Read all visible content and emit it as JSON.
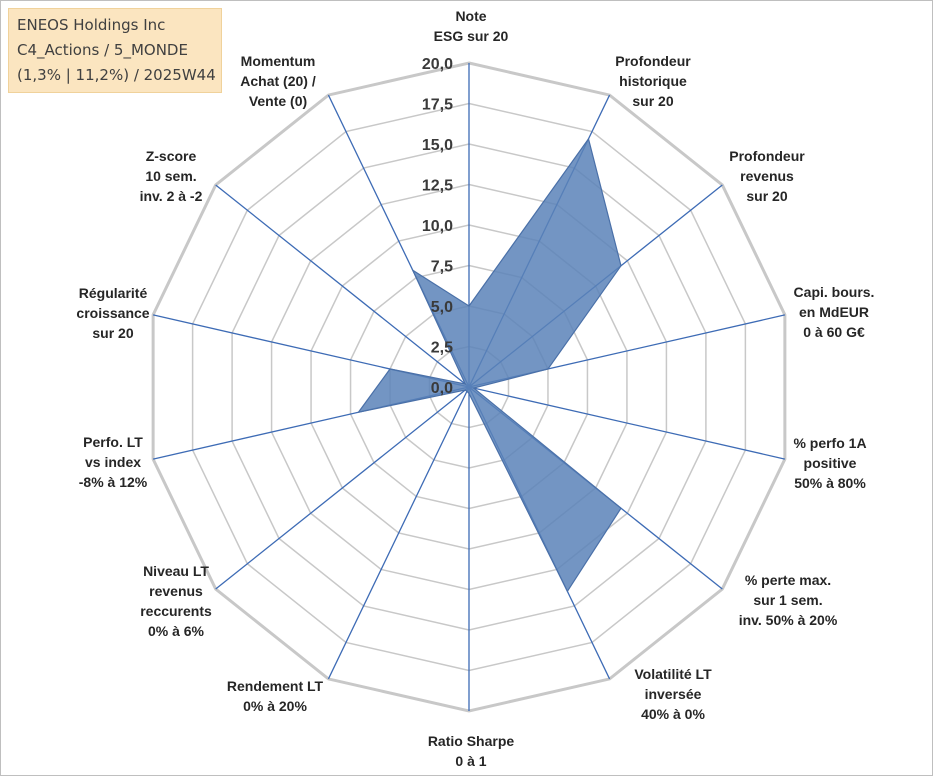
{
  "title_box": {
    "line1": "ENEOS Holdings Inc",
    "line2": "C4_Actions / 5_MONDE",
    "line3": "(1,3% | 11,2%) / 2025W44"
  },
  "colors": {
    "fill": "#5b82b8",
    "stroke": "#4a70a8",
    "spoke": "#3d6bb5",
    "grid": "#c8c8c8",
    "title_box_bg": "#fbe5c0"
  },
  "chart_data": {
    "type": "radar",
    "rlim": [
      0,
      20
    ],
    "ticks": [
      "0,0",
      "2,5",
      "5,0",
      "7,5",
      "10,0",
      "12,5",
      "15,0",
      "17,5",
      "20,0"
    ],
    "tick_values": [
      0,
      2.5,
      5,
      7.5,
      10,
      12.5,
      15,
      17.5,
      20
    ],
    "categories": [
      [
        "Note",
        "ESG sur 20"
      ],
      [
        "Profondeur",
        "historique",
        "sur 20"
      ],
      [
        "Profondeur",
        "revenus",
        "sur 20"
      ],
      [
        "Capi. bours.",
        "en MdEUR",
        "0 à 60 G€"
      ],
      [
        "% perfo 1A",
        "positive",
        "50% à 80%"
      ],
      [
        "% perte max.",
        "sur 1 sem.",
        "inv. 50% à 20%"
      ],
      [
        "Volatilité LT",
        "inversée",
        "40% à 0%"
      ],
      [
        "Ratio Sharpe",
        "0 à 1"
      ],
      [
        "Rendement LT",
        "0% à 20%"
      ],
      [
        "Niveau LT",
        "revenus",
        "reccurents",
        "0% à 6%"
      ],
      [
        "Perfo. LT",
        "vs index",
        "-8% à 12%"
      ],
      [
        "Régularité",
        "croissance",
        "sur 20"
      ],
      [
        "Z-score",
        "10 sem.",
        "inv. 2 à -2"
      ],
      [
        "Momentum",
        "Achat (20) /",
        "Vente (0)"
      ]
    ],
    "values": [
      5.0,
      17.0,
      12.0,
      5.0,
      0.3,
      12.0,
      14.0,
      0.4,
      0.3,
      0.3,
      7.0,
      5.0,
      0.3,
      8.0
    ],
    "grid": true,
    "legend": "none"
  }
}
